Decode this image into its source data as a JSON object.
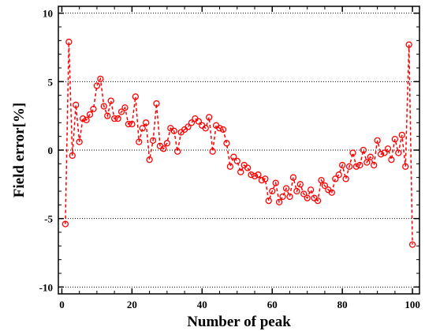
{
  "chart_data": {
    "type": "line",
    "title": "",
    "xlabel": "Number of peak",
    "ylabel": "Field error[%]",
    "xlim": [
      -1,
      102
    ],
    "ylim": [
      -10.5,
      10.5
    ],
    "x_ticks": [
      0,
      20,
      40,
      60,
      80,
      100
    ],
    "y_ticks": [
      -10,
      -5,
      0,
      5,
      10
    ],
    "grid": "horizontal dotted at y ticks",
    "legend": "none",
    "series": [
      {
        "color": "#ff0000",
        "marker": "open-circle",
        "line_style": "dashed",
        "x": [
          1,
          2,
          3,
          4,
          5,
          6,
          7,
          8,
          9,
          10,
          11,
          12,
          13,
          14,
          15,
          16,
          17,
          18,
          19,
          20,
          21,
          22,
          23,
          24,
          25,
          26,
          27,
          28,
          29,
          30,
          31,
          32,
          33,
          34,
          35,
          36,
          37,
          38,
          39,
          40,
          41,
          42,
          43,
          44,
          45,
          46,
          47,
          48,
          49,
          50,
          51,
          52,
          53,
          54,
          55,
          56,
          57,
          58,
          59,
          60,
          61,
          62,
          63,
          64,
          65,
          66,
          67,
          68,
          69,
          70,
          71,
          72,
          73,
          74,
          75,
          76,
          77,
          78,
          79,
          80,
          81,
          82,
          83,
          84,
          85,
          86,
          87,
          88,
          89,
          90,
          91,
          92,
          93,
          94,
          95,
          96,
          97,
          98,
          99,
          100
        ],
        "y": [
          -5.4,
          7.9,
          -0.4,
          3.3,
          0.6,
          2.3,
          2.2,
          2.6,
          3.0,
          4.7,
          5.2,
          3.2,
          2.5,
          3.6,
          2.3,
          2.3,
          2.8,
          3.1,
          1.9,
          1.9,
          3.9,
          0.6,
          1.6,
          2.0,
          -0.7,
          0.7,
          3.4,
          0.3,
          0.1,
          0.5,
          1.6,
          1.4,
          -0.1,
          1.3,
          1.5,
          1.7,
          2.0,
          2.3,
          2.1,
          1.8,
          1.6,
          2.4,
          -0.1,
          1.8,
          1.6,
          1.5,
          0.5,
          -1.2,
          -0.5,
          -0.8,
          -1.6,
          -1.1,
          -1.3,
          -1.8,
          -1.9,
          -1.8,
          -2.2,
          -2.1,
          -3.7,
          -3.0,
          -2.4,
          -3.8,
          -3.4,
          -2.8,
          -3.4,
          -2.0,
          -3.0,
          -2.5,
          -3.2,
          -3.5,
          -2.9,
          -3.5,
          -3.7,
          -2.2,
          -2.6,
          -2.9,
          -3.1,
          -2.1,
          -1.8,
          -1.1,
          -2.1,
          -1.2,
          -0.2,
          -1.2,
          -1.1,
          0.0,
          -0.9,
          -0.5,
          -1.1,
          0.7,
          -0.3,
          -0.2,
          0.1,
          -0.7,
          0.8,
          -0.2,
          1.1,
          -1.2,
          7.7,
          -6.9
        ]
      }
    ]
  }
}
